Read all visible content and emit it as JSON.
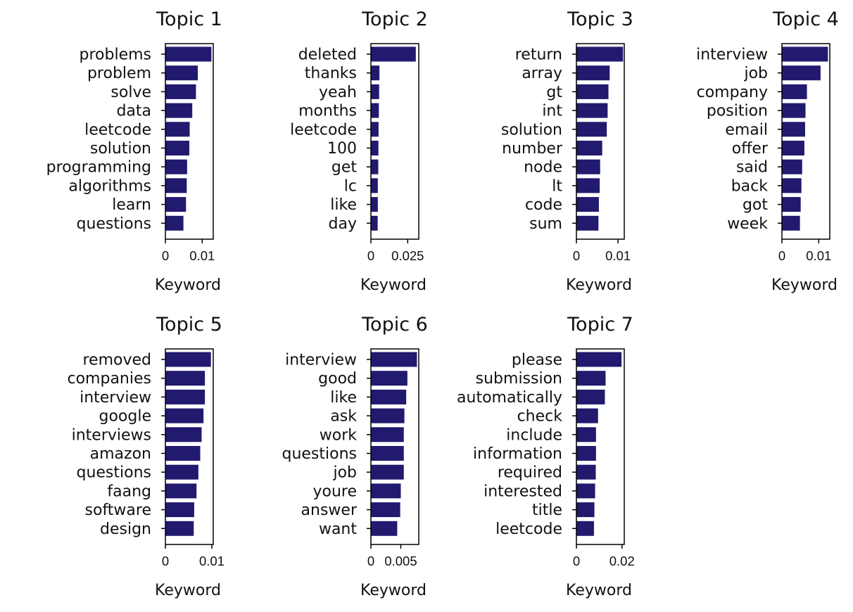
{
  "chart_data": [
    {
      "type": "bar",
      "orientation": "horizontal",
      "title": "Topic 1",
      "xlabel": "Keyword",
      "ylabel": "",
      "categories": [
        "problems",
        "problem",
        "solve",
        "data",
        "leetcode",
        "solution",
        "programming",
        "algorithms",
        "learn",
        "questions"
      ],
      "values": [
        0.0125,
        0.0088,
        0.0083,
        0.0073,
        0.0066,
        0.0065,
        0.0059,
        0.0058,
        0.0056,
        0.0049
      ],
      "xlim": [
        0,
        0.013
      ],
      "xticks": [
        0,
        0.01
      ],
      "xtick_labels": [
        "0",
        "0.01"
      ]
    },
    {
      "type": "bar",
      "orientation": "horizontal",
      "title": "Topic 2",
      "xlabel": "Keyword",
      "ylabel": "",
      "categories": [
        "deleted",
        "thanks",
        "yeah",
        "months",
        "leetcode",
        "100",
        "get",
        "lc",
        "like",
        "day"
      ],
      "values": [
        0.0305,
        0.0058,
        0.0056,
        0.0054,
        0.0052,
        0.0051,
        0.005,
        0.0047,
        0.0047,
        0.0046
      ],
      "xlim": [
        0,
        0.0325
      ],
      "xticks": [
        0,
        0.025
      ],
      "xtick_labels": [
        "0",
        "0.025"
      ]
    },
    {
      "type": "bar",
      "orientation": "horizontal",
      "title": "Topic 3",
      "xlabel": "Keyword",
      "ylabel": "",
      "categories": [
        "return",
        "array",
        "gt",
        "int",
        "solution",
        "number",
        "node",
        "lt",
        "code",
        "sum"
      ],
      "values": [
        0.0112,
        0.008,
        0.0077,
        0.0075,
        0.0073,
        0.0062,
        0.0057,
        0.0056,
        0.0054,
        0.0053
      ],
      "xlim": [
        0,
        0.0115
      ],
      "xticks": [
        0,
        0.01
      ],
      "xtick_labels": [
        "0",
        "0.01"
      ]
    },
    {
      "type": "bar",
      "orientation": "horizontal",
      "title": "Topic 4",
      "xlabel": "Keyword",
      "ylabel": "",
      "categories": [
        "interview",
        "job",
        "company",
        "position",
        "email",
        "offer",
        "said",
        "back",
        "got",
        "week"
      ],
      "values": [
        0.0125,
        0.0105,
        0.0068,
        0.0064,
        0.0063,
        0.0061,
        0.0055,
        0.0053,
        0.0051,
        0.0049
      ],
      "xlim": [
        0,
        0.013
      ],
      "xticks": [
        0,
        0.01
      ],
      "xtick_labels": [
        "0",
        "0.01"
      ]
    },
    {
      "type": "bar",
      "orientation": "horizontal",
      "title": "Topic 5",
      "xlabel": "Keyword",
      "ylabel": "",
      "categories": [
        "removed",
        "companies",
        "interview",
        "google",
        "interviews",
        "amazon",
        "questions",
        "faang",
        "software",
        "design"
      ],
      "values": [
        0.0098,
        0.0085,
        0.0085,
        0.0082,
        0.0078,
        0.0075,
        0.0071,
        0.0067,
        0.0062,
        0.0061
      ],
      "xlim": [
        0,
        0.0103
      ],
      "xticks": [
        0,
        0.01
      ],
      "xtick_labels": [
        "0",
        "0.01"
      ]
    },
    {
      "type": "bar",
      "orientation": "horizontal",
      "title": "Topic 6",
      "xlabel": "Keyword",
      "ylabel": "",
      "categories": [
        "interview",
        "good",
        "like",
        "ask",
        "work",
        "questions",
        "job",
        "youre",
        "answer",
        "want"
      ],
      "values": [
        0.0077,
        0.0061,
        0.0059,
        0.0056,
        0.0055,
        0.0055,
        0.0055,
        0.005,
        0.0049,
        0.0044
      ],
      "xlim": [
        0,
        0.008
      ],
      "xticks": [
        0,
        0.005
      ],
      "xtick_labels": [
        "0",
        "0.005"
      ]
    },
    {
      "type": "bar",
      "orientation": "horizontal",
      "title": "Topic 7",
      "xlabel": "Keyword",
      "ylabel": "",
      "categories": [
        "please",
        "submission",
        "automatically",
        "check",
        "include",
        "information",
        "required",
        "interested",
        "title",
        "leetcode"
      ],
      "values": [
        0.0198,
        0.0128,
        0.0125,
        0.0095,
        0.0086,
        0.0086,
        0.0085,
        0.0082,
        0.0079,
        0.0077
      ],
      "xlim": [
        0,
        0.021
      ],
      "xticks": [
        0,
        0.02
      ],
      "xtick_labels": [
        "0",
        "0.02"
      ]
    }
  ],
  "style": {
    "bar_color": "#221a6e",
    "axis_color": "#000000",
    "text_color": "#111111"
  }
}
